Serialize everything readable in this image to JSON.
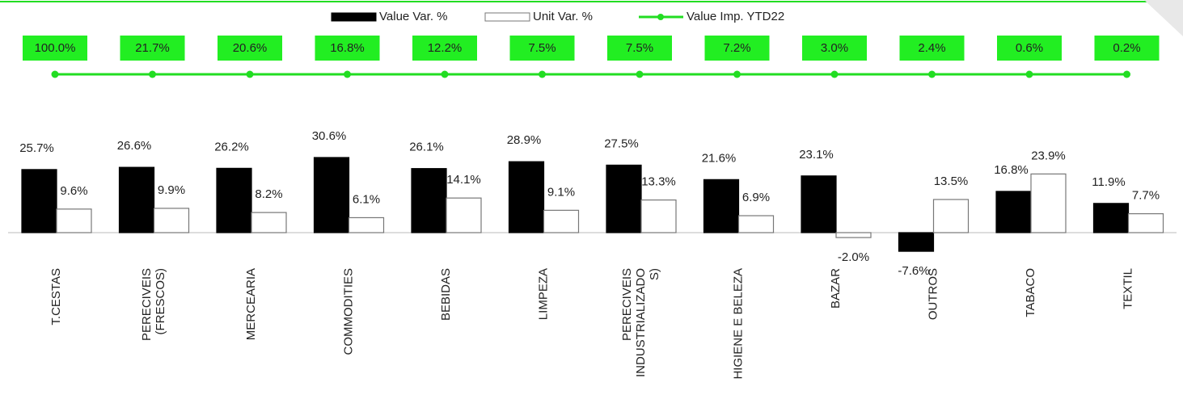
{
  "chart_data": {
    "type": "bar",
    "categories": [
      "T.CESTAS",
      "PERECIVEIS\n(FRESCOS)",
      "MERCEARIA",
      "COMMODITIES",
      "BEBIDAS",
      "LIMPEZA",
      "PERECIVEIS\nINDUSTRIALIZADO\nS)",
      "HIGIENE E BELEZA",
      "BAZAR",
      "OUTROS",
      "TABACO",
      "TEXTIL"
    ],
    "series": [
      {
        "name": "Value Var. %",
        "type": "bar",
        "color": "#000000",
        "values": [
          25.7,
          26.6,
          26.2,
          30.6,
          26.1,
          28.9,
          27.5,
          21.6,
          23.1,
          -7.6,
          16.8,
          11.9
        ],
        "value_labels": [
          "25.7%",
          "26.6%",
          "26.2%",
          "30.6%",
          "26.1%",
          "28.9%",
          "27.5%",
          "21.6%",
          "23.1%",
          "-7.6%",
          "16.8%",
          "11.9%"
        ]
      },
      {
        "name": "Unit Var. %",
        "type": "bar",
        "color": "#ffffff",
        "values": [
          9.6,
          9.9,
          8.2,
          6.1,
          14.1,
          9.1,
          13.3,
          6.9,
          -2.0,
          13.5,
          23.9,
          7.7
        ],
        "value_labels": [
          "9.6%",
          "9.9%",
          "8.2%",
          "6.1%",
          "14.1%",
          "9.1%",
          "13.3%",
          "6.9%",
          "-2.0%",
          "13.5%",
          "23.9%",
          "7.7%"
        ]
      },
      {
        "name": "Value Imp. YTD22",
        "type": "line",
        "color": "#22dd22",
        "values": [
          100.0,
          21.7,
          20.6,
          16.8,
          12.2,
          7.5,
          7.5,
          7.2,
          3.0,
          2.4,
          0.6,
          0.2
        ],
        "value_labels": [
          "100.0%",
          "21.7%",
          "20.6%",
          "16.8%",
          "12.2%",
          "7.5%",
          "7.5%",
          "7.2%",
          "3.0%",
          "2.4%",
          "0.6%",
          "0.2%"
        ]
      }
    ],
    "ylim": [
      -20,
      40
    ],
    "legend": "top"
  }
}
